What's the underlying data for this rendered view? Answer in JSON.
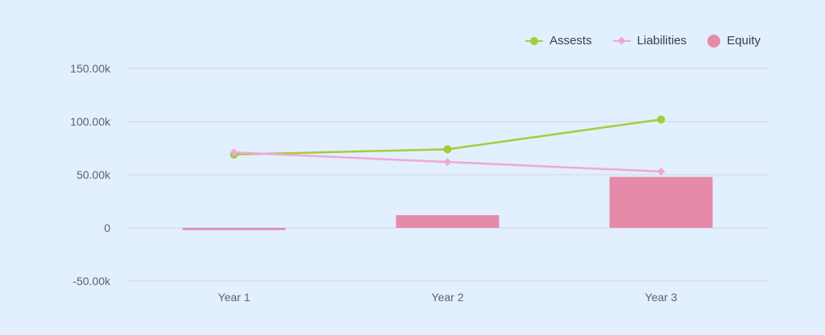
{
  "chart_data": {
    "type": "bar",
    "title": "",
    "xlabel": "",
    "ylabel": "",
    "categories": [
      "Year 1",
      "Year 2",
      "Year 3"
    ],
    "series": [
      {
        "name": "Assests",
        "type": "line",
        "marker": "circle",
        "color": "#a4cd39",
        "values": [
          69000,
          74000,
          102000
        ]
      },
      {
        "name": "Liabilities",
        "type": "line",
        "marker": "diamond",
        "color": "#f1a7d6",
        "values": [
          71000,
          62000,
          53000
        ]
      },
      {
        "name": "Equity",
        "type": "bar",
        "color": "#e68aaa",
        "values": [
          -2000,
          12000,
          48000
        ]
      }
    ],
    "ylim": [
      -50000,
      150000
    ],
    "yticks": [
      150000,
      100000,
      50000,
      0,
      -50000
    ],
    "ytick_labels": [
      "150.00k",
      "100.00k",
      "50.00k",
      "0",
      "-50.00k"
    ],
    "grid": true,
    "legend_position": "top-right"
  },
  "legend": {
    "items": [
      {
        "label": "Assests",
        "color": "#a4cd39",
        "shape": "circle"
      },
      {
        "label": "Liabilities",
        "color": "#f1a7d6",
        "shape": "diamond"
      },
      {
        "label": "Equity",
        "color": "#e68aaa",
        "shape": "dot"
      }
    ]
  },
  "colors": {
    "background": "#e1efff",
    "grid": "#d6dce4",
    "axis_text": "#5f6368"
  }
}
